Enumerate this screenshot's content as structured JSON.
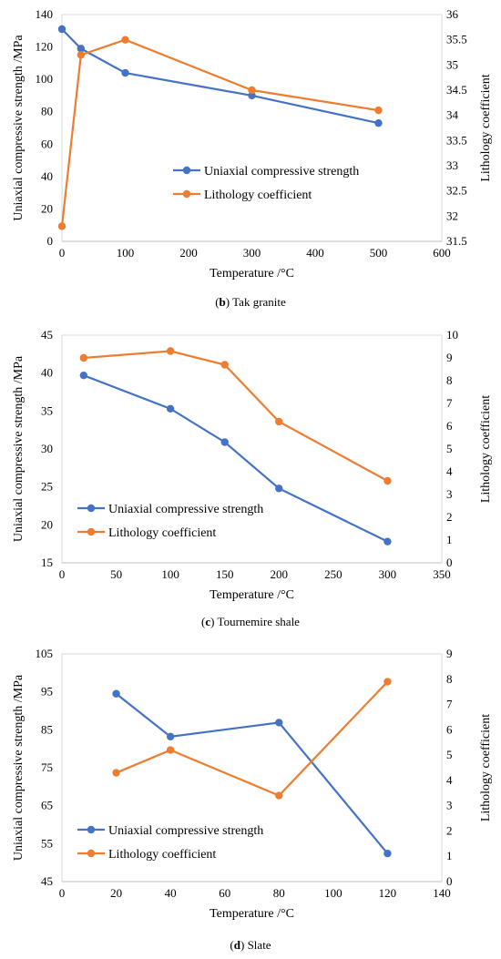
{
  "colors": {
    "uniaxial": "#4472C4",
    "lithology": "#ED7D31"
  },
  "chart_data": [
    {
      "type": "line",
      "caption_letter": "b",
      "caption_text": "Tak granite",
      "xlabel": "Temperature /°C",
      "ylabel": "Uniaxial compressive strength /MPa",
      "y2label": "Lithology coefficient",
      "xlim": [
        0,
        600
      ],
      "xticks": [
        0,
        100,
        200,
        300,
        400,
        500,
        600
      ],
      "ylim": [
        0,
        140
      ],
      "yticks": [
        0,
        20,
        40,
        60,
        80,
        100,
        120,
        140
      ],
      "y2lim": [
        31.5,
        36
      ],
      "y2ticks": [
        "31.5",
        "32",
        "32.5",
        "33",
        "33.5",
        "34",
        "34.5",
        "35",
        "35.5",
        "36"
      ],
      "legend_position": "center-right",
      "series": [
        {
          "name": "Uniaxial compressive strength",
          "axis": "left",
          "x": [
            0,
            30,
            100,
            300,
            500
          ],
          "values": [
            131,
            119,
            104,
            90,
            73
          ]
        },
        {
          "name": "Lithology coefficient",
          "axis": "right",
          "x": [
            0,
            30,
            100,
            300,
            500
          ],
          "values": [
            31.8,
            35.2,
            35.5,
            34.5,
            34.1
          ]
        }
      ]
    },
    {
      "type": "line",
      "caption_letter": "c",
      "caption_text": "Tournemire shale",
      "xlabel": "Temperature /°C",
      "ylabel": "Uniaxial compressive strength /MPa",
      "y2label": "Lithology coefficient",
      "xlim": [
        0,
        350
      ],
      "xticks": [
        0,
        50,
        100,
        150,
        200,
        250,
        300,
        350
      ],
      "ylim": [
        15,
        45
      ],
      "yticks": [
        15,
        20,
        25,
        30,
        35,
        40,
        45
      ],
      "y2lim": [
        0,
        10
      ],
      "y2ticks": [
        "0",
        "1",
        "2",
        "3",
        "4",
        "5",
        "6",
        "7",
        "8",
        "9",
        "10"
      ],
      "legend_position": "bottom-left",
      "series": [
        {
          "name": "Uniaxial compressive strength",
          "axis": "left",
          "x": [
            20,
            100,
            150,
            200,
            300
          ],
          "values": [
            39.7,
            35.3,
            30.9,
            24.8,
            17.8
          ]
        },
        {
          "name": "Lithology coefficient",
          "axis": "right",
          "x": [
            20,
            100,
            150,
            200,
            300
          ],
          "values": [
            9.0,
            9.3,
            8.7,
            6.2,
            3.6
          ]
        }
      ]
    },
    {
      "type": "line",
      "caption_letter": "d",
      "caption_text": "Slate",
      "xlabel": "Temperature /°C",
      "ylabel": "Uniaxial compressive strength /MPa",
      "y2label": "Lithology coefficient",
      "xlim": [
        0,
        140
      ],
      "xticks": [
        0,
        20,
        40,
        60,
        80,
        100,
        120,
        140
      ],
      "ylim": [
        45,
        105
      ],
      "yticks": [
        45,
        55,
        65,
        75,
        85,
        95,
        105
      ],
      "y2lim": [
        0,
        9
      ],
      "y2ticks": [
        "0",
        "1",
        "2",
        "3",
        "4",
        "5",
        "6",
        "7",
        "8",
        "9"
      ],
      "legend_position": "bottom-left",
      "series": [
        {
          "name": "Uniaxial compressive strength",
          "axis": "left",
          "x": [
            20,
            40,
            80,
            120
          ],
          "values": [
            94.5,
            83.2,
            86.9,
            52.4
          ]
        },
        {
          "name": "Lithology coefficient",
          "axis": "right",
          "x": [
            20,
            40,
            80,
            120
          ],
          "values": [
            4.3,
            5.2,
            3.4,
            7.9
          ]
        }
      ]
    }
  ]
}
